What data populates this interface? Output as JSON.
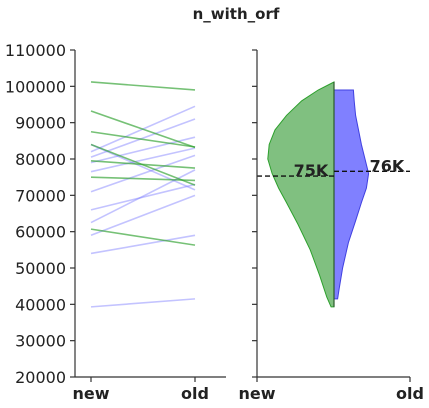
{
  "chart_data": {
    "type": "line",
    "title": "n_with_orf",
    "ylim": [
      20000,
      110000
    ],
    "y_ticks": [
      "20000",
      "30000",
      "40000",
      "50000",
      "60000",
      "70000",
      "80000",
      "90000",
      "100000",
      "110000"
    ],
    "categories": [
      "new",
      "old"
    ],
    "colors": {
      "green": "#2ca02c",
      "blue": "#7b7bff",
      "violin_green": "#80c080",
      "violin_blue": "#8080ff"
    },
    "paired_lines": {
      "green": [
        [
          101200,
          99000
        ],
        [
          93200,
          83200
        ],
        [
          87500,
          83300
        ],
        [
          84000,
          72800
        ],
        [
          79500,
          77500
        ],
        [
          75000,
          74100
        ],
        [
          60700,
          56300
        ]
      ],
      "blue": [
        [
          39300,
          41500
        ],
        [
          54000,
          59000
        ],
        [
          59000,
          70000
        ],
        [
          62500,
          77000
        ],
        [
          66000,
          73000
        ],
        [
          71000,
          81000
        ],
        [
          76500,
          83000
        ],
        [
          79000,
          86000
        ],
        [
          80500,
          91000
        ],
        [
          82000,
          94500
        ],
        [
          84000,
          71500
        ]
      ]
    },
    "violin": {
      "categories": [
        "new",
        "old"
      ],
      "new": {
        "min": 39300,
        "max": 101200,
        "median_label": "75K",
        "median": 75300,
        "profile": [
          [
            39300,
            0.04
          ],
          [
            42000,
            0.1
          ],
          [
            48000,
            0.2
          ],
          [
            55000,
            0.33
          ],
          [
            62000,
            0.5
          ],
          [
            68000,
            0.66
          ],
          [
            72000,
            0.77
          ],
          [
            76000,
            0.86
          ],
          [
            80000,
            0.92
          ],
          [
            84000,
            0.9
          ],
          [
            88000,
            0.82
          ],
          [
            92000,
            0.66
          ],
          [
            96000,
            0.45
          ],
          [
            99000,
            0.22
          ],
          [
            101200,
            0.0
          ]
        ]
      },
      "old": {
        "min": 41500,
        "max": 99000,
        "median_label": "76K",
        "median": 76600,
        "profile": [
          [
            41500,
            0.05
          ],
          [
            44000,
            0.07
          ],
          [
            50000,
            0.12
          ],
          [
            57000,
            0.2
          ],
          [
            63000,
            0.3
          ],
          [
            68000,
            0.38
          ],
          [
            72000,
            0.45
          ],
          [
            76000,
            0.48
          ],
          [
            80000,
            0.43
          ],
          [
            84000,
            0.38
          ],
          [
            88000,
            0.34
          ],
          [
            92000,
            0.3
          ],
          [
            96000,
            0.28
          ],
          [
            99000,
            0.27
          ]
        ]
      }
    }
  }
}
